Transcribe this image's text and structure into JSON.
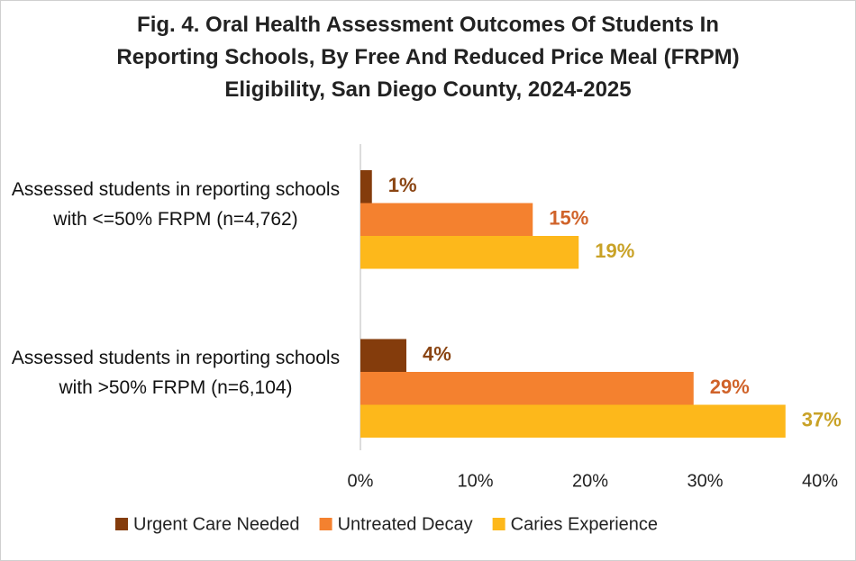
{
  "chart_data": {
    "type": "barh",
    "title": "Fig. 4. Oral Health Assessment Outcomes Of Students In Reporting Schools, By Free And Reduced Price Meal (FRPM) Eligibility, San Diego County, 2024-2025",
    "categories": [
      "Assessed students in reporting schools with <=50% FRPM (n=4,762)",
      "Assessed students in reporting schools with >50% FRPM (n=6,104)"
    ],
    "series": [
      {
        "name": "Urgent Care Needed",
        "color": "#843c0c",
        "label_color": "#8a4513",
        "values": [
          1,
          4
        ],
        "value_labels": [
          "1%",
          "4%"
        ]
      },
      {
        "name": "Untreated Decay",
        "color": "#f4812f",
        "label_color": "#d0632a",
        "values": [
          15,
          29
        ],
        "value_labels": [
          "15%",
          "29%"
        ]
      },
      {
        "name": "Caries Experience",
        "color": "#fdb81b",
        "label_color": "#c9a227",
        "values": [
          19,
          37
        ],
        "value_labels": [
          "19%",
          "37%"
        ]
      }
    ],
    "xlim": [
      0,
      40
    ],
    "xticks": [
      {
        "value": 0,
        "label": "0%"
      },
      {
        "value": 10,
        "label": "10%"
      },
      {
        "value": 20,
        "label": "20%"
      },
      {
        "value": 30,
        "label": "30%"
      },
      {
        "value": 40,
        "label": "40%"
      }
    ],
    "grid": false,
    "legend": "bottom"
  }
}
